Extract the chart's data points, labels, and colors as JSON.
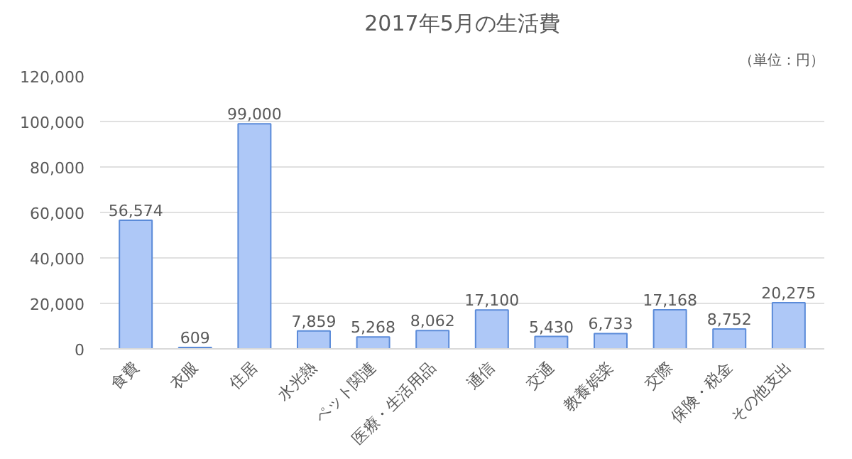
{
  "chart_data": {
    "type": "bar",
    "title": "2017年5月の生活費",
    "annotations": [
      "（単位：円）"
    ],
    "categories": [
      "食費",
      "衣服",
      "住居",
      "水光熱",
      "ペット関連",
      "医療・生活用品",
      "通信",
      "交通",
      "教養娯楽",
      "交際",
      "保険・税金",
      "その他支出"
    ],
    "values": [
      56574,
      609,
      99000,
      7859,
      5268,
      8062,
      17100,
      5430,
      6733,
      17168,
      8752,
      20275
    ],
    "value_labels": [
      "56,574",
      "609",
      "99,000",
      "7,859",
      "5,268",
      "8,062",
      "17,100",
      "5,430",
      "6,733",
      "17,168",
      "8,752",
      "20,275"
    ],
    "color": "#aec8f7",
    "grid": "y",
    "ylim": [
      0,
      120000
    ],
    "yticks": [
      {
        "value": 0,
        "label": "0"
      },
      {
        "value": 20000,
        "label": "20,000"
      },
      {
        "value": 40000,
        "label": "40,000"
      },
      {
        "value": 60000,
        "label": "60,000"
      },
      {
        "value": 80000,
        "label": "80,000"
      },
      {
        "value": 100000,
        "label": "100,000"
      },
      {
        "value": 120000,
        "label": "120,000"
      }
    ]
  }
}
